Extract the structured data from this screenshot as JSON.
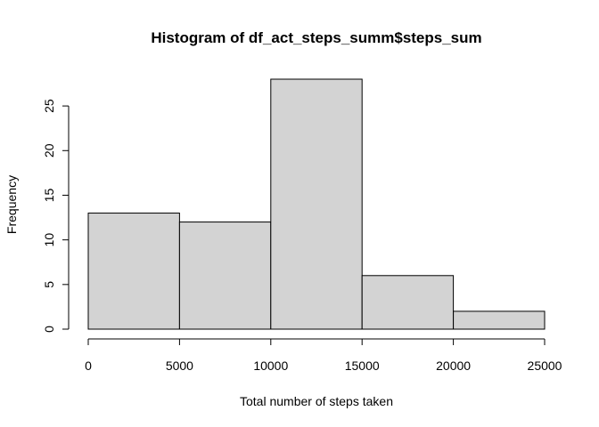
{
  "chart_data": {
    "type": "bar",
    "title": "Histogram of df_act_steps_summ$steps_sum",
    "xlabel": "Total number of steps taken",
    "ylabel": "Frequency",
    "bins": [
      {
        "from": 0,
        "to": 5000,
        "count": 13
      },
      {
        "from": 5000,
        "to": 10000,
        "count": 12
      },
      {
        "from": 10000,
        "to": 15000,
        "count": 28
      },
      {
        "from": 15000,
        "to": 20000,
        "count": 6
      },
      {
        "from": 20000,
        "to": 25000,
        "count": 2
      }
    ],
    "xlim": [
      0,
      25000
    ],
    "ylim": [
      0,
      28
    ],
    "x_ticks": [
      "0",
      "5000",
      "10000",
      "15000",
      "20000",
      "25000"
    ],
    "y_ticks": [
      "0",
      "5",
      "10",
      "15",
      "20",
      "25"
    ],
    "x_tick_values": [
      0,
      5000,
      10000,
      15000,
      20000,
      25000
    ],
    "y_tick_values": [
      0,
      5,
      10,
      15,
      20,
      25
    ],
    "grid": false,
    "bar_color": "#d3d3d3",
    "bar_edge_color": "#000000"
  }
}
